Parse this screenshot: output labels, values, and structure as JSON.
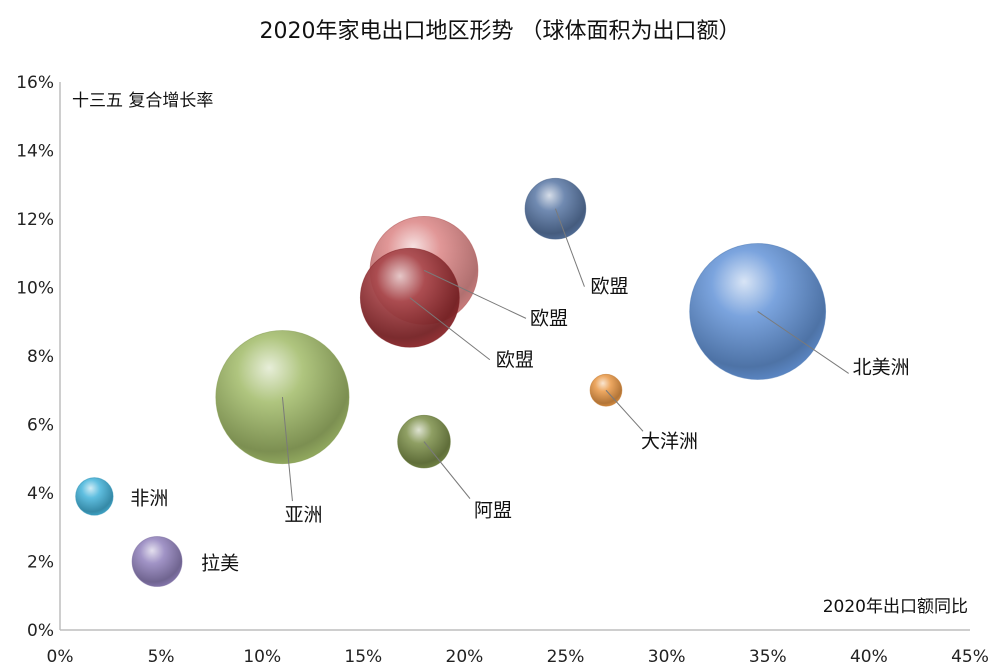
{
  "chart_data": {
    "type": "scatter",
    "title": "2020年家电出口地区形势 （球体面积为出口额）",
    "xlabel": "2020年出口额同比",
    "ylabel": "十三五 复合增长率",
    "xlim": [
      0,
      45
    ],
    "ylim": [
      0,
      16
    ],
    "x_ticks": [
      "0%",
      "5%",
      "10%",
      "15%",
      "20%",
      "25%",
      "30%",
      "35%",
      "40%",
      "45%"
    ],
    "y_ticks": [
      "0%",
      "2%",
      "4%",
      "6%",
      "8%",
      "10%",
      "12%",
      "14%",
      "16%"
    ],
    "x_tick_values": [
      0,
      5,
      10,
      15,
      20,
      25,
      30,
      35,
      40,
      45
    ],
    "y_tick_values": [
      0,
      2,
      4,
      6,
      8,
      10,
      12,
      14,
      16
    ],
    "grid": false,
    "points": [
      {
        "label": "北美洲",
        "x": 34.5,
        "y": 9.3,
        "size": 1.0,
        "color": "#5B8ED6"
      },
      {
        "label": "欧盟",
        "x": 24.5,
        "y": 12.3,
        "size": 0.2,
        "color": "#4E6E9E"
      },
      {
        "label": "欧盟",
        "x": 18.0,
        "y": 10.5,
        "size": 0.63,
        "color": "#D46A6A"
      },
      {
        "label": "欧盟",
        "x": 17.3,
        "y": 9.7,
        "size": 0.53,
        "color": "#9B2A2F"
      },
      {
        "label": "亚洲",
        "x": 11.0,
        "y": 6.8,
        "size": 0.96,
        "color": "#9CB760"
      },
      {
        "label": "阿盟",
        "x": 18.0,
        "y": 5.5,
        "size": 0.15,
        "color": "#74883E"
      },
      {
        "label": "大洋洲",
        "x": 27.0,
        "y": 7.0,
        "size": 0.055,
        "color": "#E8913A"
      },
      {
        "label": "非洲",
        "x": 1.7,
        "y": 3.9,
        "size": 0.076,
        "color": "#39AFD8"
      },
      {
        "label": "拉美",
        "x": 4.8,
        "y": 2.0,
        "size": 0.135,
        "color": "#8B7AB8"
      }
    ]
  }
}
